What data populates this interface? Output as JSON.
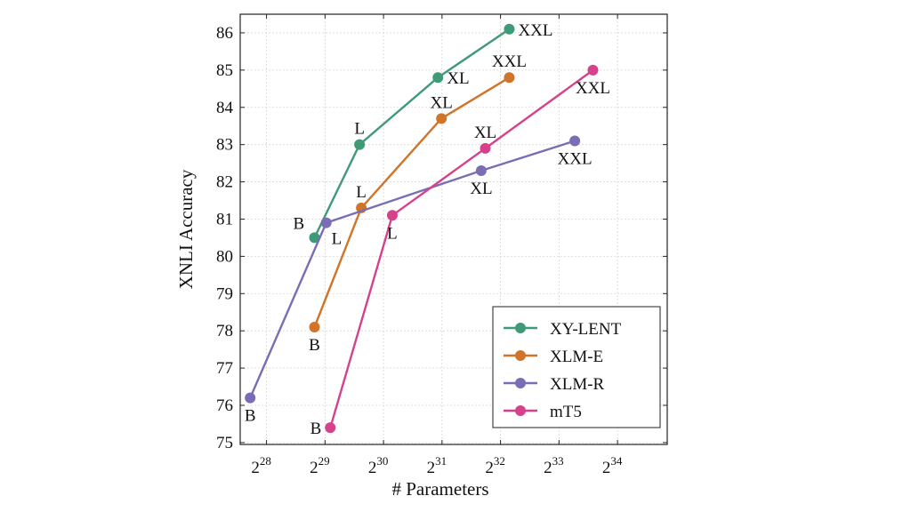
{
  "chart_data": {
    "type": "line",
    "xlabel": "# Parameters",
    "ylabel": "XNLI Accuracy",
    "x_scale": "log2",
    "xlim": [
      27.55,
      34.85
    ],
    "ylim": [
      74.95,
      86.5
    ],
    "x_ticks": [
      {
        "exp": 28,
        "base": "2",
        "sup": "28"
      },
      {
        "exp": 29,
        "base": "2",
        "sup": "29"
      },
      {
        "exp": 30,
        "base": "2",
        "sup": "30"
      },
      {
        "exp": 31,
        "base": "2",
        "sup": "31"
      },
      {
        "exp": 32,
        "base": "2",
        "sup": "32"
      },
      {
        "exp": 33,
        "base": "2",
        "sup": "33"
      },
      {
        "exp": 34,
        "base": "2",
        "sup": "34"
      }
    ],
    "y_ticks": [
      75,
      76,
      77,
      78,
      79,
      80,
      81,
      82,
      83,
      84,
      85,
      86
    ],
    "legend": {
      "position": "bottom-right"
    },
    "series": [
      {
        "name": "XY-LENT",
        "color": "#3f9a78",
        "points": [
          {
            "x": 28.82,
            "y": 80.5,
            "label": "",
            "label_pos": "none"
          },
          {
            "x": 29.59,
            "y": 83.0,
            "label": "L",
            "label_pos": "above"
          },
          {
            "x": 30.93,
            "y": 84.8,
            "label": "XL",
            "label_pos": "right"
          },
          {
            "x": 32.15,
            "y": 86.1,
            "label": "XXL",
            "label_pos": "right"
          }
        ]
      },
      {
        "name": "XLM-E",
        "color": "#d0742a",
        "points": [
          {
            "x": 28.82,
            "y": 78.1,
            "label": "B",
            "label_pos": "below"
          },
          {
            "x": 29.62,
            "y": 81.3,
            "label": "L",
            "label_pos": "above"
          },
          {
            "x": 30.99,
            "y": 83.7,
            "label": "XL",
            "label_pos": "above"
          },
          {
            "x": 32.15,
            "y": 84.8,
            "label": "XXL",
            "label_pos": "above"
          }
        ]
      },
      {
        "name": "XLM-R",
        "color": "#7b6db5",
        "points": [
          {
            "x": 27.72,
            "y": 76.2,
            "label": "B",
            "label_pos": "below"
          },
          {
            "x": 29.02,
            "y": 80.9,
            "label": "L",
            "label_pos": "below-right"
          },
          {
            "x": 31.67,
            "y": 82.3,
            "label": "XL",
            "label_pos": "below"
          },
          {
            "x": 33.27,
            "y": 83.1,
            "label": "XXL",
            "label_pos": "below"
          }
        ]
      },
      {
        "name": "mT5",
        "color": "#d6418c",
        "points": [
          {
            "x": 29.09,
            "y": 75.4,
            "label": "B",
            "label_pos": "left"
          },
          {
            "x": 30.15,
            "y": 81.1,
            "label": "L",
            "label_pos": "below"
          },
          {
            "x": 31.74,
            "y": 82.9,
            "label": "XL",
            "label_pos": "above"
          },
          {
            "x": 33.58,
            "y": 85.0,
            "label": "XXL",
            "label_pos": "below"
          }
        ]
      }
    ],
    "extra_labels": [
      {
        "text": "B",
        "x": 28.8,
        "y": 80.9,
        "pos": "left"
      }
    ]
  }
}
